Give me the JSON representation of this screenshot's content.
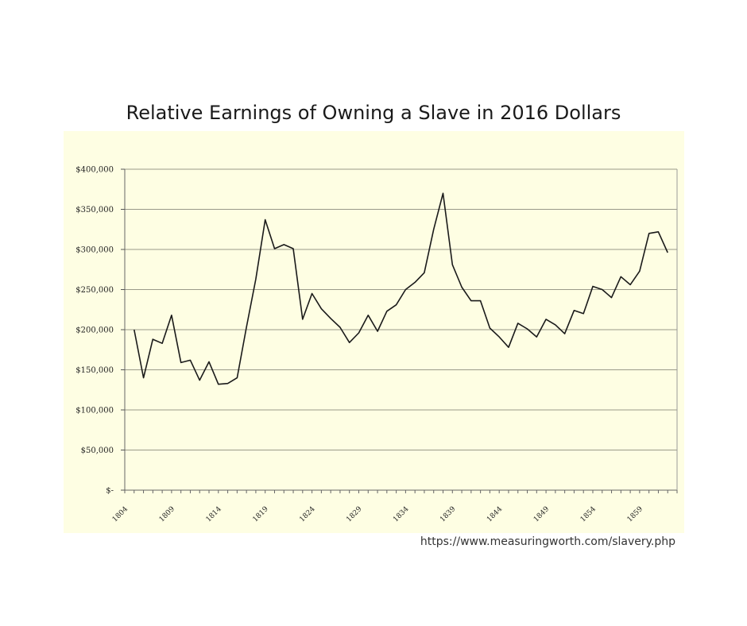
{
  "source_text": "https://www.measuringworth.com/slavery.php",
  "colors": {
    "panel_bg": "#fefee3",
    "line": "#1a1a1a",
    "grid": "#9a9a8a"
  },
  "chart_data": {
    "type": "line",
    "title": "Relative Earnings of Owning a Slave in 2016 Dollars",
    "xlabel": "",
    "ylabel": "",
    "ylim": [
      0,
      400000
    ],
    "xlim": [
      1804,
      1863
    ],
    "y_ticks": [
      0,
      50000,
      100000,
      150000,
      200000,
      250000,
      300000,
      350000,
      400000
    ],
    "y_tick_labels": [
      "$-",
      "$50,000",
      "$100,000",
      "$150,000",
      "$200,000",
      "$250,000",
      "$300,000",
      "$350,000",
      "$400,000"
    ],
    "x_ticks": [
      1804,
      1809,
      1814,
      1819,
      1824,
      1829,
      1834,
      1839,
      1844,
      1849,
      1854,
      1859
    ],
    "grid": "horizontal",
    "series": [
      {
        "x": [
          1805,
          1806,
          1807,
          1808,
          1809,
          1810,
          1811,
          1812,
          1813,
          1814,
          1815,
          1816,
          1817,
          1818,
          1819,
          1820,
          1821,
          1822,
          1823,
          1824,
          1825,
          1826,
          1827,
          1828,
          1829,
          1830,
          1831,
          1832,
          1833,
          1834,
          1835,
          1836,
          1837,
          1838,
          1839,
          1840,
          1841,
          1842,
          1843,
          1844,
          1845,
          1846,
          1847,
          1848,
          1849,
          1850,
          1851,
          1852,
          1853,
          1854,
          1855,
          1856,
          1857,
          1858,
          1859,
          1860,
          1861,
          1862
        ],
        "values": [
          200000,
          140000,
          188000,
          183000,
          218000,
          159000,
          162000,
          137000,
          160000,
          132000,
          133000,
          140000,
          203000,
          263000,
          337000,
          301000,
          306000,
          301000,
          213000,
          245000,
          226000,
          214000,
          203000,
          184000,
          196000,
          218000,
          198000,
          223000,
          231000,
          250000,
          259000,
          271000,
          325000,
          370000,
          281000,
          253000,
          236000,
          236000,
          202000,
          191000,
          178000,
          208000,
          201000,
          191000,
          213000,
          206000,
          195000,
          224000,
          220000,
          254000,
          250000,
          240000,
          266000,
          256000,
          273000,
          320000,
          322000,
          296000
        ]
      }
    ]
  }
}
